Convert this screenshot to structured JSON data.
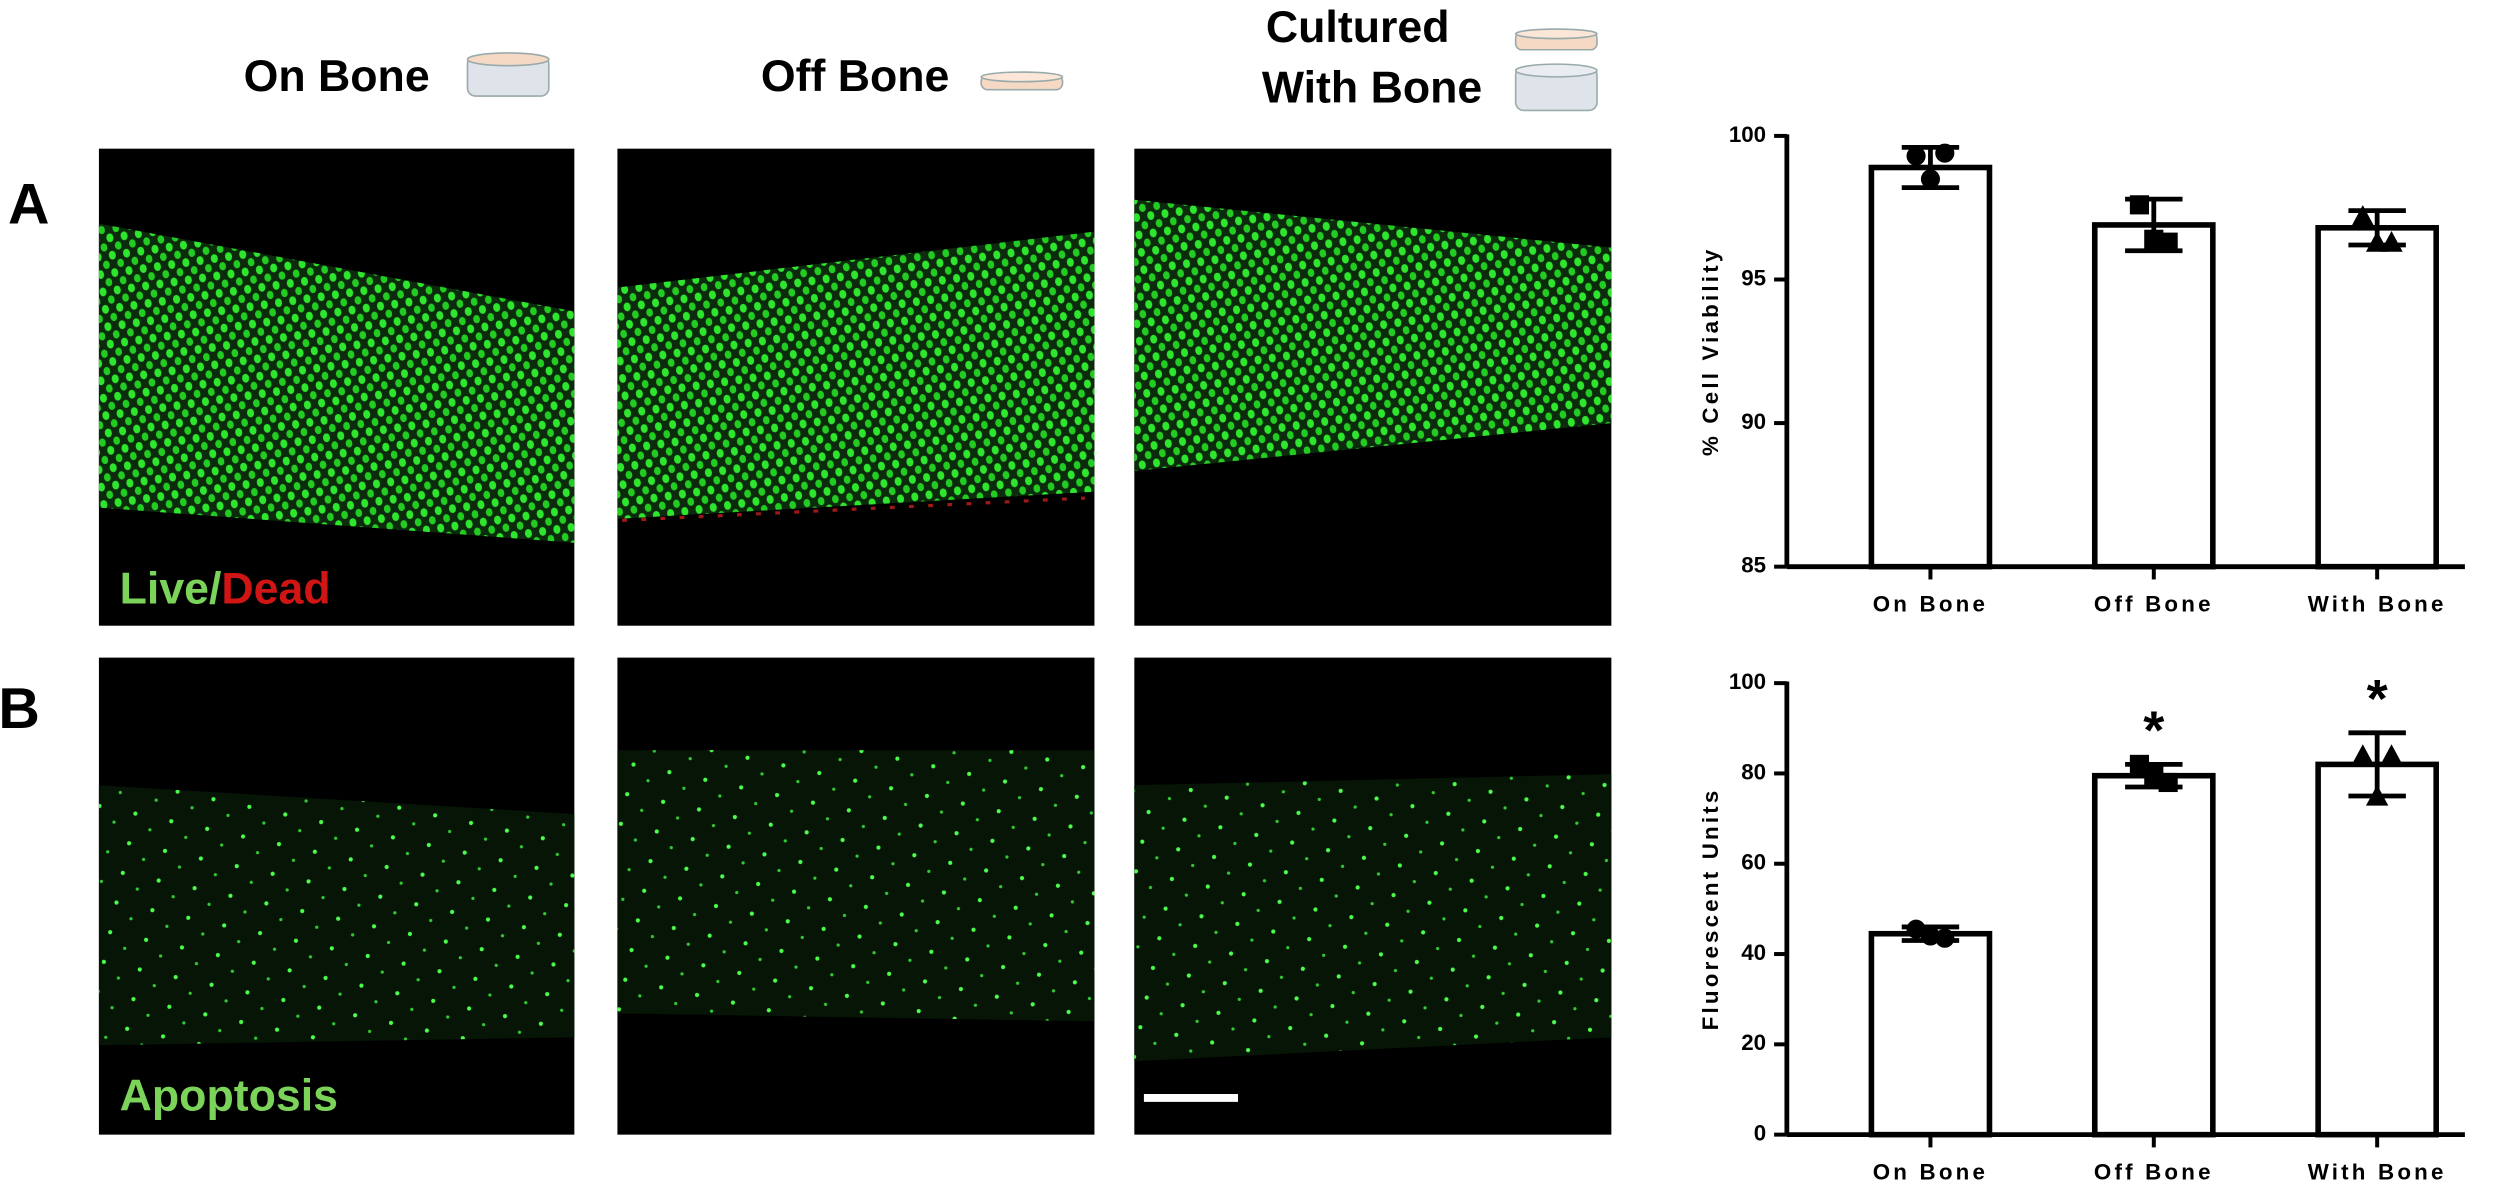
{
  "headers": {
    "on_bone": "On Bone",
    "off_bone": "Off Bone",
    "with_bone": [
      "Cultured",
      "With Bone"
    ]
  },
  "panel_labels": [
    "A",
    "B"
  ],
  "image_labels": {
    "live": "Live",
    "slash": "/",
    "dead": "Dead",
    "apoptosis": "Apoptosis"
  },
  "chart_data": [
    {
      "type": "bar",
      "ylabel": "% Cell Viability",
      "categories": [
        "On Bone",
        "Off Bone",
        "With Bone"
      ],
      "values": [
        98.9,
        96.9,
        96.8
      ],
      "errors": [
        0.7,
        0.9,
        0.6
      ],
      "points": [
        [
          99.3,
          99.4,
          98.5
        ],
        [
          97.6,
          96.3,
          96.4
        ],
        [
          97.2,
          96.3,
          96.3
        ]
      ],
      "markers": [
        "circle",
        "square",
        "triangle"
      ],
      "significance": [
        null,
        null,
        null
      ],
      "color": "#ffffff",
      "edgecolor": "#000000",
      "ylim": [
        85,
        100
      ],
      "yticks": [
        85,
        90,
        95,
        100
      ]
    },
    {
      "type": "bar",
      "ylabel": "Fluorescent Units",
      "categories": [
        "On Bone",
        "Off Bone",
        "With Bone"
      ],
      "values": [
        44.5,
        79.5,
        82
      ],
      "errors": [
        1.5,
        2.5,
        7
      ],
      "points": [
        [
          45.5,
          43.5,
          44
        ],
        [
          82,
          78,
          79.5
        ],
        [
          84,
          84,
          75
        ]
      ],
      "markers": [
        "circle",
        "square",
        "triangle"
      ],
      "significance": [
        null,
        "*",
        "*"
      ],
      "color": "#ffffff",
      "edgecolor": "#000000",
      "ylim": [
        0,
        100
      ],
      "yticks": [
        0,
        20,
        40,
        60,
        80,
        100
      ]
    }
  ]
}
